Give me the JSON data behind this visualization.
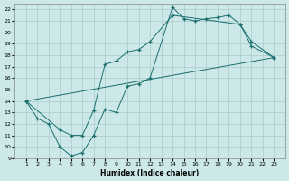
{
  "xlabel": "Humidex (Indice chaleur)",
  "bg_color": "#cce8e8",
  "grid_color": "#aacccc",
  "line_color": "#1a6e6e",
  "xlim": [
    0,
    24
  ],
  "ylim": [
    9,
    22.5
  ],
  "xticks": [
    1,
    2,
    3,
    4,
    5,
    6,
    7,
    8,
    9,
    10,
    11,
    12,
    13,
    14,
    15,
    16,
    17,
    18,
    19,
    20,
    21,
    22,
    23
  ],
  "yticks": [
    9,
    10,
    11,
    12,
    13,
    14,
    15,
    16,
    17,
    18,
    19,
    20,
    21,
    22
  ],
  "series": [
    {
      "x": [
        1,
        2,
        3,
        4,
        5,
        6,
        7,
        8,
        9,
        10,
        11,
        12,
        14,
        15,
        16,
        17,
        18,
        19,
        20,
        21,
        23
      ],
      "y": [
        14.0,
        12.5,
        12.0,
        10.0,
        9.2,
        9.5,
        11.0,
        13.3,
        13.0,
        15.3,
        15.5,
        16.0,
        22.2,
        21.2,
        21.0,
        21.2,
        21.3,
        21.5,
        20.7,
        19.2,
        17.8
      ],
      "markers": true
    },
    {
      "x": [
        1,
        4,
        5,
        6,
        7,
        8,
        9,
        10,
        11,
        12,
        14,
        20,
        21,
        23
      ],
      "y": [
        14.0,
        11.5,
        11.0,
        11.0,
        13.2,
        17.2,
        17.5,
        18.3,
        18.5,
        19.2,
        21.5,
        20.7,
        18.8,
        17.8
      ],
      "markers": true
    },
    {
      "x": [
        1,
        23
      ],
      "y": [
        14.0,
        17.8
      ],
      "markers": false
    }
  ]
}
